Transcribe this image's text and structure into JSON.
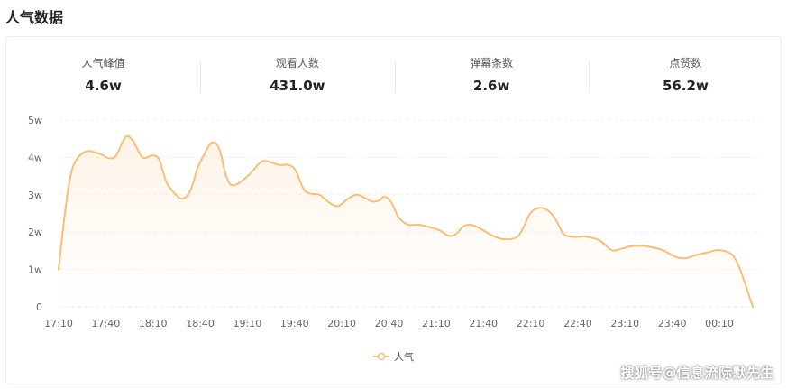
{
  "section_title": "人气数据",
  "stats": [
    {
      "label": "人气峰值",
      "value": "4.6w"
    },
    {
      "label": "观看人数",
      "value": "431.0w"
    },
    {
      "label": "弹幕条数",
      "value": "2.6w"
    },
    {
      "label": "点赞数",
      "value": "56.2w"
    }
  ],
  "chart_data": {
    "type": "area",
    "title": "",
    "xlabel": "",
    "ylabel": "",
    "x_ticks": [
      "17:10",
      "17:40",
      "18:10",
      "18:40",
      "19:10",
      "19:40",
      "20:10",
      "20:40",
      "21:10",
      "21:40",
      "22:10",
      "22:40",
      "23:10",
      "23:40",
      "00:10"
    ],
    "y_ticks": [
      "0",
      "1w",
      "2w",
      "3w",
      "4w",
      "5w"
    ],
    "ylim": [
      0,
      5
    ],
    "grid": true,
    "legend": "bottom-center",
    "series": [
      {
        "name": "人气",
        "color": "#f8bf75",
        "points": [
          [
            0,
            1.0
          ],
          [
            3,
            2.7
          ],
          [
            6,
            3.75
          ],
          [
            11,
            4.15
          ],
          [
            17,
            4.1
          ],
          [
            21,
            3.98
          ],
          [
            24,
            4.05
          ],
          [
            28,
            4.55
          ],
          [
            31,
            4.45
          ],
          [
            35,
            4.0
          ],
          [
            39,
            4.05
          ],
          [
            42,
            3.95
          ],
          [
            45,
            3.35
          ],
          [
            49,
            3.0
          ],
          [
            52,
            2.9
          ],
          [
            55,
            3.1
          ],
          [
            58,
            3.7
          ],
          [
            61,
            4.1
          ],
          [
            64,
            4.4
          ],
          [
            67,
            4.25
          ],
          [
            70,
            3.5
          ],
          [
            73,
            3.25
          ],
          [
            79,
            3.5
          ],
          [
            84,
            3.85
          ],
          [
            87,
            3.9
          ],
          [
            92,
            3.8
          ],
          [
            96,
            3.8
          ],
          [
            99,
            3.65
          ],
          [
            103,
            3.1
          ],
          [
            109,
            3.0
          ],
          [
            111,
            2.9
          ],
          [
            114,
            2.75
          ],
          [
            117,
            2.7
          ],
          [
            120,
            2.85
          ],
          [
            124,
            3.0
          ],
          [
            127,
            2.95
          ],
          [
            131,
            2.82
          ],
          [
            134,
            2.85
          ],
          [
            136,
            2.95
          ],
          [
            139,
            2.8
          ],
          [
            142,
            2.4
          ],
          [
            146,
            2.2
          ],
          [
            150,
            2.2
          ],
          [
            154,
            2.15
          ],
          [
            159,
            2.05
          ],
          [
            163,
            1.9
          ],
          [
            166,
            1.95
          ],
          [
            169,
            2.15
          ],
          [
            172,
            2.2
          ],
          [
            176,
            2.1
          ],
          [
            180,
            1.95
          ],
          [
            185,
            1.82
          ],
          [
            191,
            1.85
          ],
          [
            194,
            2.1
          ],
          [
            197,
            2.5
          ],
          [
            201,
            2.65
          ],
          [
            205,
            2.55
          ],
          [
            208,
            2.3
          ],
          [
            211,
            1.95
          ],
          [
            215,
            1.87
          ],
          [
            220,
            1.88
          ],
          [
            226,
            1.78
          ],
          [
            231,
            1.52
          ],
          [
            235,
            1.55
          ],
          [
            239,
            1.62
          ],
          [
            244,
            1.63
          ],
          [
            249,
            1.58
          ],
          [
            253,
            1.5
          ],
          [
            258,
            1.33
          ],
          [
            262,
            1.3
          ],
          [
            266,
            1.38
          ],
          [
            272,
            1.47
          ],
          [
            275,
            1.52
          ],
          [
            279,
            1.48
          ],
          [
            282,
            1.35
          ],
          [
            285,
            0.95
          ],
          [
            290,
            0.0
          ]
        ]
      }
    ]
  },
  "watermark": "搜狐号@信息流际默先生"
}
